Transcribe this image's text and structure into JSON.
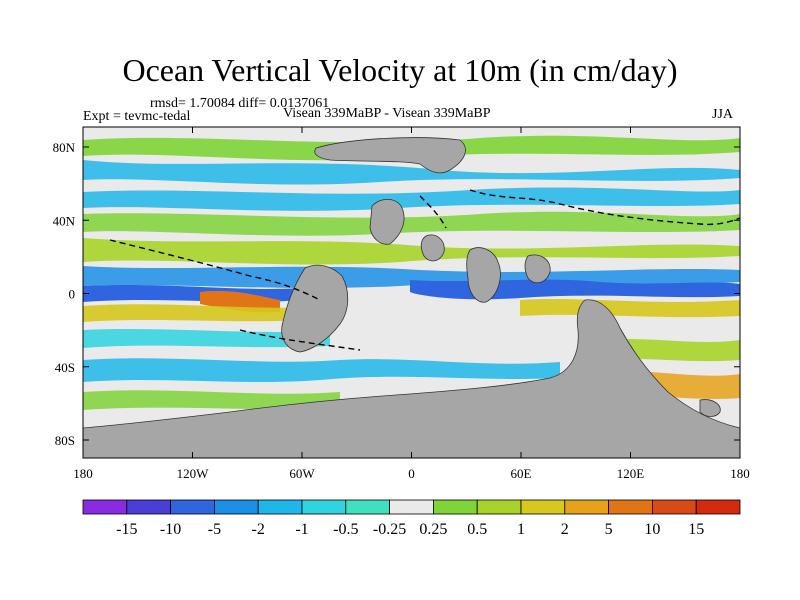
{
  "title": "Ocean Vertical Velocity at 10m (in cm/day)",
  "stats": "rmsd= 1.70084 diff= 0.0137061",
  "experiment": "Expt = tevmc-tedal",
  "runs": "Visean 339MaBP - Visean 339MaBP",
  "season": "JJA",
  "axes": {
    "x_ticks": [
      "180",
      "120W",
      "60W",
      "0",
      "60E",
      "120E",
      "180"
    ],
    "y_ticks": [
      "80N",
      "40N",
      "0",
      "40S",
      "80S"
    ]
  },
  "colorbar": {
    "labels": [
      "-15",
      "-10",
      "-5",
      "-2",
      "-1",
      "-0.5",
      "-0.25",
      "0.25",
      "0.5",
      "1",
      "2",
      "5",
      "10",
      "15"
    ],
    "colors": [
      "#8a2be2",
      "#4b3ed6",
      "#2f66e0",
      "#1c8fe6",
      "#1fb7ea",
      "#2fd4e0",
      "#3ee0c0",
      "#eaeaea",
      "#7fd437",
      "#a8d42a",
      "#d6c81e",
      "#e6a21a",
      "#e07417",
      "#d94b16",
      "#d42a10"
    ]
  },
  "legend_colors": {
    "land": "#a6a6a6",
    "neutral": "#eaeaea"
  }
}
